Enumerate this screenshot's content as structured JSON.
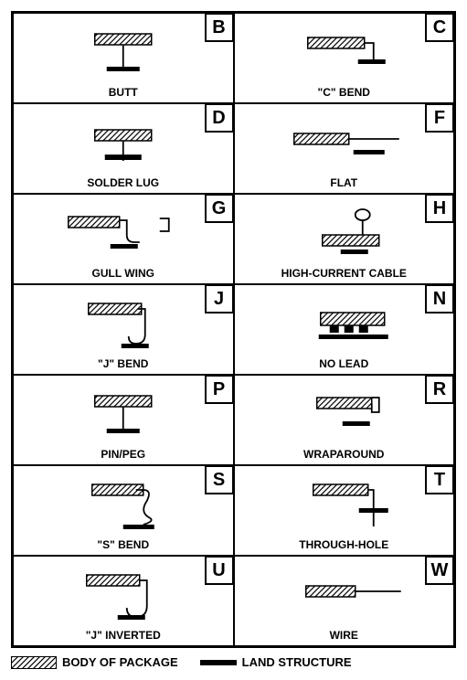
{
  "grid": {
    "rows": 7,
    "cols": 2,
    "border_color": "#000000",
    "cells": [
      {
        "letter": "B",
        "label": "BUTT",
        "symbol": "butt"
      },
      {
        "letter": "C",
        "label": "\"C\" BEND",
        "symbol": "cbend"
      },
      {
        "letter": "D",
        "label": "SOLDER LUG",
        "symbol": "solderlug"
      },
      {
        "letter": "F",
        "label": "FLAT",
        "symbol": "flat"
      },
      {
        "letter": "G",
        "label": "GULL WING",
        "symbol": "gullwing"
      },
      {
        "letter": "H",
        "label": "HIGH-CURRENT CABLE",
        "symbol": "highcurrent"
      },
      {
        "letter": "J",
        "label": "\"J\" BEND",
        "symbol": "jbend"
      },
      {
        "letter": "N",
        "label": "NO LEAD",
        "symbol": "nolead"
      },
      {
        "letter": "P",
        "label": "PIN/PEG",
        "symbol": "pinpeg"
      },
      {
        "letter": "R",
        "label": "WRAPAROUND",
        "symbol": "wraparound"
      },
      {
        "letter": "S",
        "label": "\"S\" BEND",
        "symbol": "sbend"
      },
      {
        "letter": "T",
        "label": "THROUGH-HOLE",
        "symbol": "throughhole"
      },
      {
        "letter": "U",
        "label": "\"J\" INVERTED",
        "symbol": "jinverted"
      },
      {
        "letter": "W",
        "label": "WIRE",
        "symbol": "wire"
      }
    ]
  },
  "legend": {
    "body_label": "BODY OF PACKAGE",
    "land_label": "LAND STRUCTURE"
  },
  "style": {
    "hatch_fill": "url(#hatch)",
    "stroke": "#000000",
    "stroke_width": 1.5,
    "land_height": 5,
    "body_height": 12,
    "body_width": 62,
    "font_family": "Arial",
    "label_fontsize": 12,
    "letter_fontsize": 20
  }
}
